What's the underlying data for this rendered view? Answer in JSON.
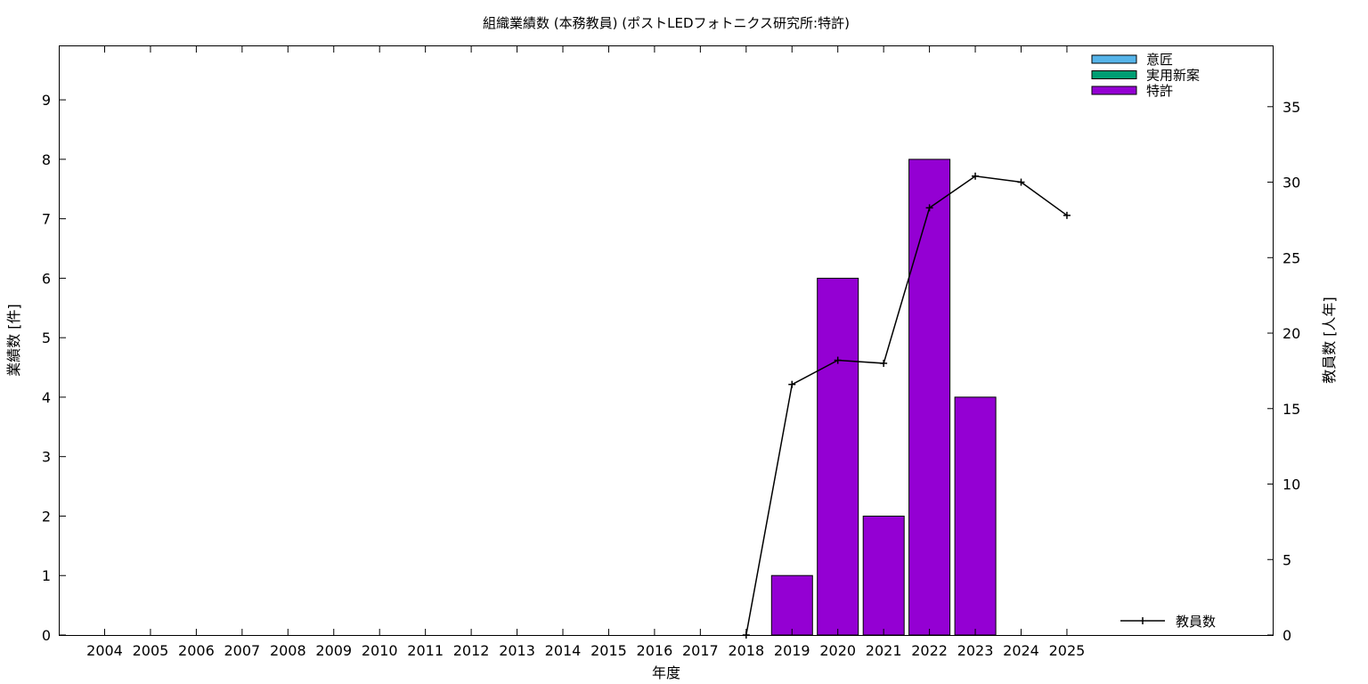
{
  "chart_data": {
    "type": "bar",
    "title": "組織業績数 (本務教員) (ポストLEDフォトニクス研究所:特許)",
    "xlabel": "年度",
    "ylabel": "業績数 [件]",
    "y2label": "教員数 [人年]",
    "categories": [
      "2004",
      "2005",
      "2006",
      "2007",
      "2008",
      "2009",
      "2010",
      "2011",
      "2012",
      "2013",
      "2014",
      "2015",
      "2016",
      "2017",
      "2018",
      "2019",
      "2020",
      "2021",
      "2022",
      "2023",
      "2024",
      "2025"
    ],
    "ylim": [
      0,
      9.9
    ],
    "y2lim": [
      0,
      39
    ],
    "y_ticks": [
      0,
      1,
      2,
      3,
      4,
      5,
      6,
      7,
      8,
      9
    ],
    "y2_ticks": [
      0,
      5,
      10,
      15,
      20,
      25,
      30,
      35
    ],
    "grid": false,
    "bar_legend_position": "top-right",
    "line_legend_position": "bottom-right",
    "series": [
      {
        "name": "意匠",
        "color": "#56b4e9",
        "values": [
          0,
          0,
          0,
          0,
          0,
          0,
          0,
          0,
          0,
          0,
          0,
          0,
          0,
          0,
          0,
          0,
          0,
          0,
          0,
          0,
          0,
          0
        ]
      },
      {
        "name": "実用新案",
        "color": "#009e73",
        "values": [
          0,
          0,
          0,
          0,
          0,
          0,
          0,
          0,
          0,
          0,
          0,
          0,
          0,
          0,
          0,
          0,
          0,
          0,
          0,
          0,
          0,
          0
        ]
      },
      {
        "name": "特許",
        "color": "#9400d3",
        "values": [
          0,
          0,
          0,
          0,
          0,
          0,
          0,
          0,
          0,
          0,
          0,
          0,
          0,
          0,
          0,
          1,
          6,
          2,
          8,
          4,
          0,
          0
        ]
      }
    ],
    "line_series": {
      "name": "教員数",
      "color": "#000000",
      "axis": "y2",
      "points": [
        {
          "x": "2018",
          "y": 0
        },
        {
          "x": "2019",
          "y": 16.6
        },
        {
          "x": "2020",
          "y": 18.2
        },
        {
          "x": "2021",
          "y": 18.0
        },
        {
          "x": "2022",
          "y": 28.3
        },
        {
          "x": "2023",
          "y": 30.4
        },
        {
          "x": "2024",
          "y": 30.0
        },
        {
          "x": "2025",
          "y": 27.8
        }
      ]
    }
  }
}
